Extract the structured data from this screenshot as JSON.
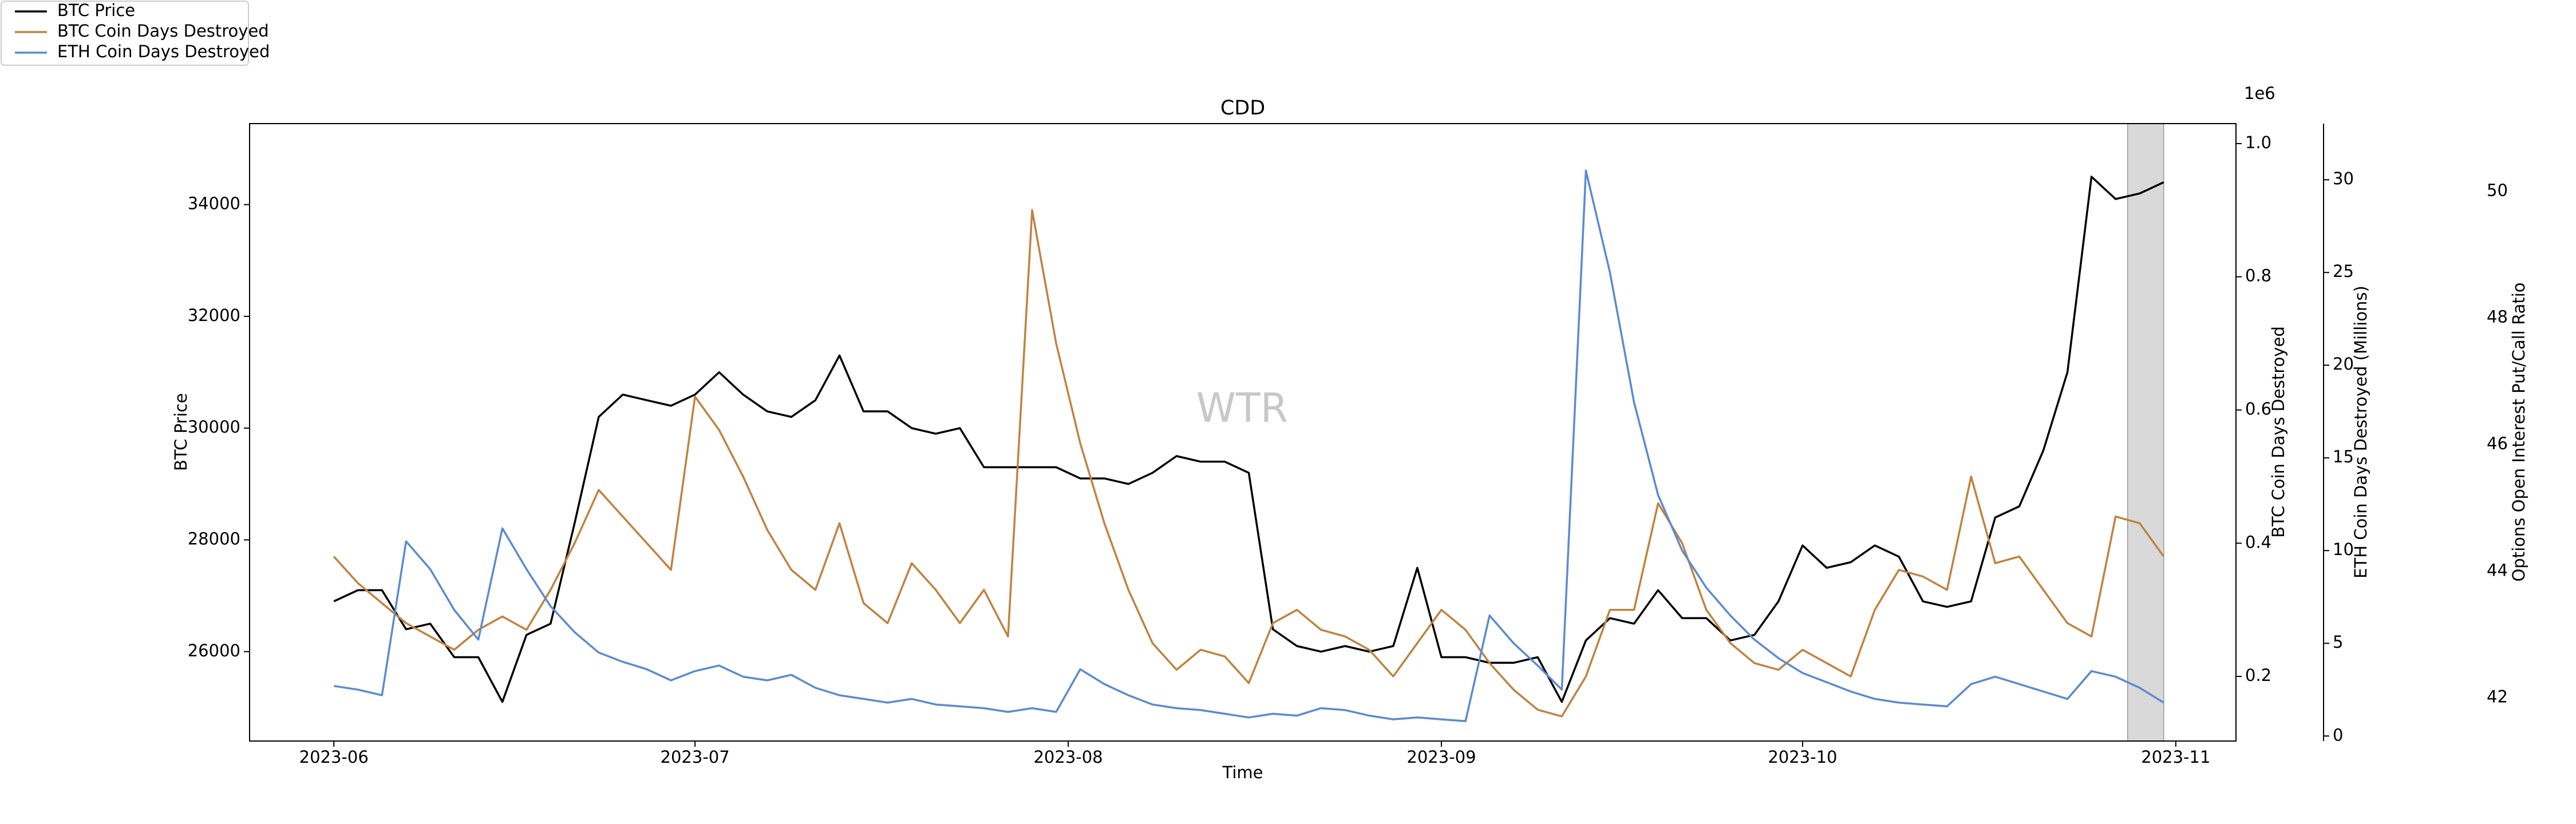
{
  "chart_data": {
    "type": "line",
    "title": "CDD",
    "watermark": "WTR",
    "xlabel": "Time",
    "ylabel": "BTC Price",
    "y2label": "BTC Coin Days Destroyed",
    "y2offset": "1e6",
    "y3label": "ETH Coin Days Destroyed (Millions)",
    "y4label": "Options Open Interest Put/Call Ratio",
    "xlim": [
      "2023-05-25",
      "2023-11-06"
    ],
    "xticks": [
      {
        "value": "2023-06-01",
        "label": "2023-06"
      },
      {
        "value": "2023-07-01",
        "label": "2023-07"
      },
      {
        "value": "2023-08-01",
        "label": "2023-08"
      },
      {
        "value": "2023-09-01",
        "label": "2023-09"
      },
      {
        "value": "2023-10-01",
        "label": "2023-10"
      },
      {
        "value": "2023-11-01",
        "label": "2023-11"
      }
    ],
    "ylim": [
      24400,
      35450
    ],
    "yticks": [
      26000,
      28000,
      30000,
      32000,
      34000
    ],
    "y2lim": [
      0.103,
      1.03
    ],
    "y2ticks": [
      0.2,
      0.4,
      0.6,
      0.8,
      {
        "value": 1.0,
        "label": "1.0"
      }
    ],
    "y3lim": [
      -0.27,
      33.03
    ],
    "y3ticks": [
      0,
      5,
      10,
      15,
      20,
      25,
      30
    ],
    "y4lim": [
      41.32,
      51.07
    ],
    "y4ticks": [
      42,
      44,
      46,
      48,
      50
    ],
    "shaded_span": [
      "2023-10-28",
      "2023-10-31"
    ],
    "legend": "upper left",
    "x": [
      "2023-06-01",
      "2023-06-03",
      "2023-06-05",
      "2023-06-07",
      "2023-06-09",
      "2023-06-11",
      "2023-06-13",
      "2023-06-15",
      "2023-06-17",
      "2023-06-19",
      "2023-06-21",
      "2023-06-23",
      "2023-06-25",
      "2023-06-27",
      "2023-06-29",
      "2023-07-01",
      "2023-07-03",
      "2023-07-05",
      "2023-07-07",
      "2023-07-09",
      "2023-07-11",
      "2023-07-13",
      "2023-07-15",
      "2023-07-17",
      "2023-07-19",
      "2023-07-21",
      "2023-07-23",
      "2023-07-25",
      "2023-07-27",
      "2023-07-29",
      "2023-07-31",
      "2023-08-02",
      "2023-08-04",
      "2023-08-06",
      "2023-08-08",
      "2023-08-10",
      "2023-08-12",
      "2023-08-14",
      "2023-08-16",
      "2023-08-18",
      "2023-08-20",
      "2023-08-22",
      "2023-08-24",
      "2023-08-26",
      "2023-08-28",
      "2023-08-30",
      "2023-09-01",
      "2023-09-03",
      "2023-09-05",
      "2023-09-07",
      "2023-09-09",
      "2023-09-11",
      "2023-09-13",
      "2023-09-15",
      "2023-09-17",
      "2023-09-19",
      "2023-09-21",
      "2023-09-23",
      "2023-09-25",
      "2023-09-27",
      "2023-09-29",
      "2023-10-01",
      "2023-10-03",
      "2023-10-05",
      "2023-10-07",
      "2023-10-09",
      "2023-10-11",
      "2023-10-13",
      "2023-10-15",
      "2023-10-17",
      "2023-10-19",
      "2023-10-21",
      "2023-10-23",
      "2023-10-25",
      "2023-10-27",
      "2023-10-29",
      "2023-10-31"
    ],
    "series": [
      {
        "name": "BTC Price",
        "color": "#000000",
        "axis": "y",
        "values": [
          26900,
          27100,
          27100,
          26400,
          26500,
          25900,
          25900,
          25100,
          26300,
          26500,
          28300,
          30200,
          30600,
          30500,
          30400,
          30600,
          31000,
          30600,
          30300,
          30200,
          30500,
          31300,
          30300,
          30300,
          30000,
          29900,
          30000,
          29300,
          29300,
          29300,
          29300,
          29100,
          29100,
          29000,
          29200,
          29500,
          29400,
          29400,
          29200,
          26400,
          26100,
          26000,
          26100,
          26000,
          26100,
          27500,
          25900,
          25900,
          25800,
          25800,
          25900,
          25100,
          26200,
          26600,
          26500,
          27100,
          26600,
          26600,
          26200,
          26300,
          26900,
          27900,
          27500,
          27600,
          27900,
          27700,
          26900,
          26800,
          26900,
          28400,
          28600,
          29600,
          31000,
          34500,
          34100,
          34200,
          34400
        ]
      },
      {
        "name": "BTC Coin Days Destroyed",
        "color": "#c0833f",
        "axis": "y2",
        "values": [
          0.38,
          0.34,
          0.31,
          0.28,
          0.26,
          0.24,
          0.27,
          0.29,
          0.27,
          0.33,
          0.4,
          0.48,
          0.44,
          0.4,
          0.36,
          0.62,
          0.57,
          0.5,
          0.42,
          0.36,
          0.33,
          0.43,
          0.31,
          0.28,
          0.37,
          0.33,
          0.28,
          0.33,
          0.26,
          0.9,
          0.7,
          0.55,
          0.43,
          0.33,
          0.25,
          0.21,
          0.24,
          0.23,
          0.19,
          0.28,
          0.3,
          0.27,
          0.26,
          0.24,
          0.2,
          0.25,
          0.3,
          0.27,
          0.22,
          0.18,
          0.15,
          0.14,
          0.2,
          0.3,
          0.3,
          0.46,
          0.4,
          0.3,
          0.25,
          0.22,
          0.21,
          0.24,
          0.22,
          0.2,
          0.3,
          0.36,
          0.35,
          0.33,
          0.5,
          0.37,
          0.38,
          0.33,
          0.28,
          0.26,
          0.44,
          0.43,
          0.38
        ]
      },
      {
        "name": "ETH Coin Days Destroyed",
        "color": "#5b8bd0",
        "axis": "y3",
        "values": [
          2.7,
          2.5,
          2.2,
          10.5,
          9.0,
          6.8,
          5.2,
          11.2,
          9.0,
          7.0,
          5.6,
          4.5,
          4.0,
          3.6,
          3.0,
          3.5,
          3.8,
          3.2,
          3.0,
          3.3,
          2.6,
          2.2,
          2.0,
          1.8,
          2.0,
          1.7,
          1.6,
          1.5,
          1.3,
          1.5,
          1.3,
          3.6,
          2.8,
          2.2,
          1.7,
          1.5,
          1.4,
          1.2,
          1.0,
          1.2,
          1.1,
          1.5,
          1.4,
          1.1,
          0.9,
          1.0,
          0.9,
          0.8,
          6.5,
          5.0,
          3.8,
          2.5,
          30.5,
          25,
          18,
          13,
          10,
          8,
          6.5,
          5.2,
          4.2,
          3.4,
          2.9,
          2.4,
          2.0,
          1.8,
          1.7,
          1.6,
          2.8,
          3.2,
          2.8,
          2.4,
          2.0,
          3.5,
          3.2,
          2.6,
          1.8
        ]
      }
    ]
  }
}
